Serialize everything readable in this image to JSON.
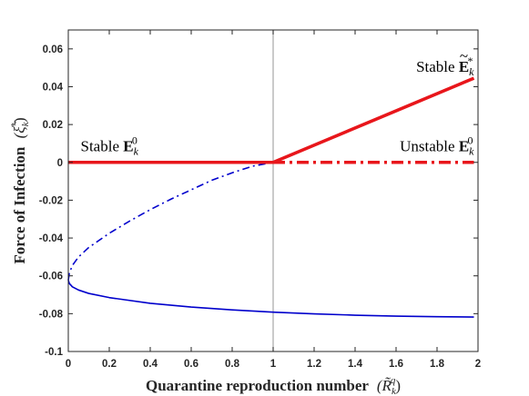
{
  "chart_data": {
    "type": "line",
    "title": "",
    "xlabel": {
      "text": "Quarantine reproduction number",
      "symbol": "(R̃",
      "sub": "k",
      "sup": "q",
      "close": ")"
    },
    "ylabel": {
      "text": "Force of Infection",
      "symbol": "(ξ̃",
      "sub": "k",
      "sup": "*",
      "close": ")"
    },
    "xlim": [
      0,
      2
    ],
    "ylim": [
      -0.1,
      0.07
    ],
    "xticks": [
      0,
      0.2,
      0.4,
      0.6,
      0.8,
      1,
      1.2,
      1.4,
      1.6,
      1.8,
      2
    ],
    "xtick_labels": [
      "0",
      "0.2",
      "0.4",
      "0.6",
      "0.8",
      "1",
      "1.2",
      "1.4",
      "1.6",
      "1.8",
      "2"
    ],
    "yticks": [
      -0.1,
      -0.08,
      -0.06,
      -0.04,
      -0.02,
      0,
      0.02,
      0.04,
      0.06
    ],
    "ytick_labels": [
      "-0.1",
      "-0.08",
      "-0.06",
      "-0.04",
      "-0.02",
      "0",
      "0.02",
      "0.04",
      "0.06"
    ],
    "vline_x": 1,
    "grid": false,
    "colors": {
      "red": "#e8161b",
      "blue": "#0000cc",
      "vline": "#a6a6a6",
      "axis": "#262626"
    },
    "series": [
      {
        "id": "dfe-stable",
        "style": "solid-thick",
        "color": "red",
        "x": [
          0,
          1
        ],
        "y": [
          0,
          0
        ]
      },
      {
        "id": "dfe-unstable",
        "style": "dashdot-thick",
        "color": "red",
        "x": [
          1,
          1.98
        ],
        "y": [
          0,
          0
        ]
      },
      {
        "id": "endemic-stable",
        "style": "solid-thick",
        "color": "red",
        "x": [
          1,
          1.98
        ],
        "y": [
          0,
          0.0445
        ]
      },
      {
        "id": "branch-unstable",
        "style": "dashdot-thin",
        "color": "blue",
        "x": [
          0,
          0.005,
          0.02,
          0.05,
          0.1,
          0.2,
          0.3,
          0.4,
          0.5,
          0.6,
          0.7,
          0.8,
          0.9,
          1.0
        ],
        "y": [
          -0.0623,
          -0.0585,
          -0.0545,
          -0.05,
          -0.045,
          -0.0375,
          -0.031,
          -0.025,
          -0.0195,
          -0.0145,
          -0.0095,
          -0.0055,
          -0.002,
          0.0
        ]
      },
      {
        "id": "branch-stable",
        "style": "solid-thin",
        "color": "blue",
        "x": [
          0,
          0.005,
          0.02,
          0.05,
          0.1,
          0.2,
          0.4,
          0.6,
          0.8,
          1.0,
          1.2,
          1.4,
          1.6,
          1.8,
          1.98
        ],
        "y": [
          -0.0623,
          -0.064,
          -0.0658,
          -0.0675,
          -0.0693,
          -0.0715,
          -0.0745,
          -0.0765,
          -0.078,
          -0.0792,
          -0.0801,
          -0.0808,
          -0.0813,
          -0.0816,
          -0.0818
        ]
      }
    ],
    "annotations": [
      {
        "id": "label-stable-dfe",
        "word": "Stable",
        "sym": "E",
        "accent": "",
        "sub": "k",
        "sup": "0",
        "x": 0.06,
        "y": 0.006,
        "anchor": "start"
      },
      {
        "id": "label-unstable-dfe",
        "word": "Unstable",
        "sym": "E",
        "accent": "",
        "sub": "k",
        "sup": "0",
        "x": 1.98,
        "y": 0.006,
        "anchor": "end"
      },
      {
        "id": "label-stable-endemic",
        "word": "Stable",
        "sym": "E",
        "accent": "~",
        "sub": "k",
        "sup": "*",
        "x": 1.98,
        "y": 0.048,
        "anchor": "end"
      }
    ]
  }
}
